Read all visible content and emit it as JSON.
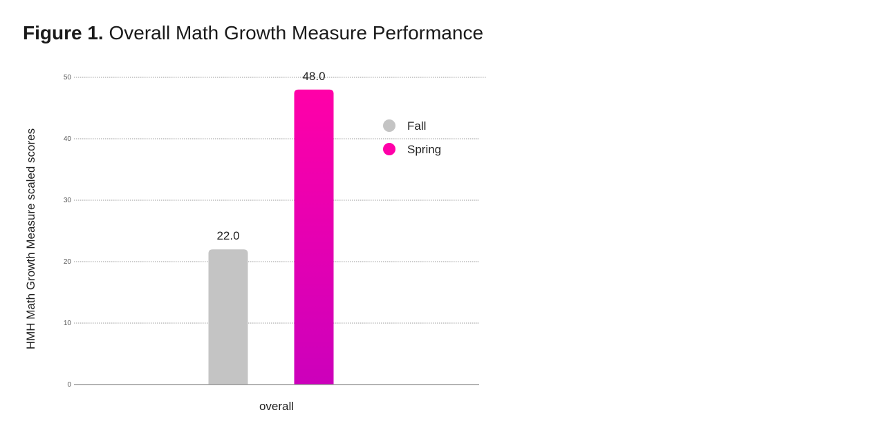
{
  "title": {
    "prefix": "Figure 1.",
    "text": "Overall Math Growth Measure Performance"
  },
  "chart_data": {
    "type": "bar",
    "title": "Figure 1. Overall Math Growth Measure Performance",
    "categories": [
      "overall"
    ],
    "series": [
      {
        "name": "Fall",
        "values": [
          22.0
        ],
        "color": "#c4c4c4",
        "label": "22.0"
      },
      {
        "name": "Spring",
        "values": [
          48.0
        ],
        "color": "#ff00a8",
        "color_end": "#cc00bb",
        "label": "48.0"
      }
    ],
    "xlabel": "overall",
    "ylabel": "HMH Math Growth Measure scaled scores",
    "ylim": [
      0,
      50
    ],
    "yticks": [
      0,
      10,
      20,
      30,
      40,
      50
    ],
    "ytick_labels": [
      "0",
      "10",
      "20",
      "30",
      "40",
      "50"
    ],
    "grid": true,
    "legend": "right",
    "gridline_color": "#9a9a9a",
    "axis_color": "#888888"
  }
}
